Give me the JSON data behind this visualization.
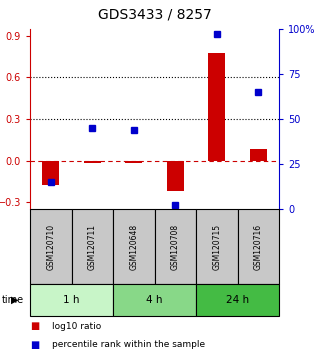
{
  "title": "GDS3433 / 8257",
  "samples": [
    "GSM120710",
    "GSM120711",
    "GSM120648",
    "GSM120708",
    "GSM120715",
    "GSM120716"
  ],
  "log10_ratio": [
    -0.18,
    -0.02,
    -0.02,
    -0.22,
    0.78,
    0.08
  ],
  "percentile_rank": [
    15,
    45,
    44,
    2,
    97,
    65
  ],
  "time_groups": [
    {
      "label": "1 h",
      "count": 2,
      "color": "#c8f5c8"
    },
    {
      "label": "4 h",
      "count": 2,
      "color": "#88d888"
    },
    {
      "label": "24 h",
      "count": 2,
      "color": "#44bb44"
    }
  ],
  "ylim_left": [
    -0.35,
    0.95
  ],
  "ylim_right": [
    0,
    100
  ],
  "yticks_left": [
    -0.3,
    0.0,
    0.3,
    0.6,
    0.9
  ],
  "yticks_right": [
    0,
    25,
    50,
    75,
    100
  ],
  "hlines": [
    0.3,
    0.6
  ],
  "bar_color": "#cc0000",
  "dot_color": "#0000cc",
  "zero_line_color": "#cc0000",
  "background_color": "#ffffff",
  "sample_box_color": "#c8c8c8",
  "legend_items": [
    {
      "label": "log10 ratio",
      "color": "#cc0000"
    },
    {
      "label": "percentile rank within the sample",
      "color": "#0000cc"
    }
  ],
  "fig_width": 3.21,
  "fig_height": 3.54,
  "dpi": 100
}
